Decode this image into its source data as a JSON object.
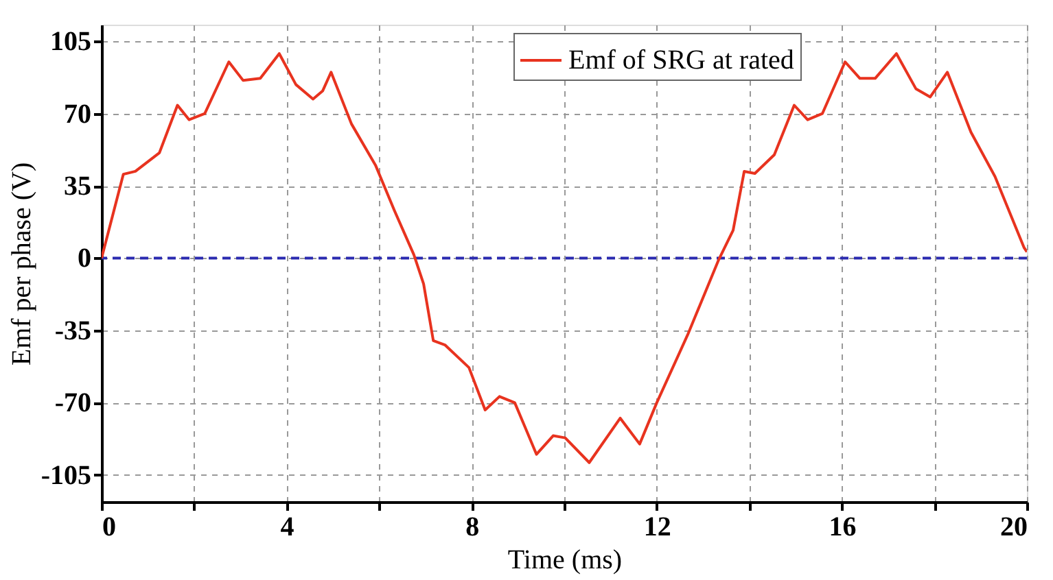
{
  "chart_data": {
    "type": "line",
    "xlabel": "Time (ms)",
    "ylabel": "Emf per phase (V)",
    "xlim": [
      0,
      20
    ],
    "ylim": [
      -118,
      113
    ],
    "xticks": [
      0,
      {
        "value": 2,
        "label": null
      },
      4,
      {
        "value": 6,
        "label": null
      },
      8,
      {
        "value": 10,
        "label": null
      },
      12,
      {
        "value": 14,
        "label": null
      },
      16,
      {
        "value": 18,
        "label": null
      },
      20
    ],
    "yticks": [
      -105,
      -70,
      -35,
      0,
      35,
      70,
      105
    ],
    "grid": true,
    "legend": "top",
    "line_style": "solid",
    "marker": "none",
    "ref_lines": [
      {
        "axis": "y",
        "value": 0,
        "color": "#2b2bb0",
        "line_style": "dashed"
      }
    ],
    "series": [
      {
        "name": "Emf of SRG at rated",
        "color": "#e8331f",
        "x": [
          0,
          0.47,
          0.73,
          1.25,
          1.64,
          1.89,
          2.23,
          2.75,
          3.06,
          3.43,
          3.84,
          4.2,
          4.57,
          4.78,
          4.96,
          5.4,
          5.92,
          6.33,
          6.75,
          6.96,
          7.17,
          7.42,
          7.94,
          8.29,
          8.6,
          8.93,
          9.4,
          9.76,
          10.02,
          10.54,
          11.21,
          11.63,
          12.0,
          12.67,
          13.34,
          13.65,
          13.89,
          14.12,
          14.54,
          14.97,
          15.26,
          15.58,
          16.07,
          16.39,
          16.72,
          17.18,
          17.6,
          17.91,
          18.28,
          18.79,
          19.31,
          19.94,
          20
        ],
        "values": [
          0,
          40.6,
          42,
          51,
          74,
          67,
          70,
          95,
          86,
          87,
          99,
          84,
          77,
          81,
          90,
          65,
          45,
          23,
          1.6,
          -12.5,
          -40,
          -42,
          -53,
          -73.5,
          -67,
          -70,
          -95,
          -86,
          -87,
          -99,
          -77.5,
          -90,
          -70,
          -37,
          -0.7,
          13.5,
          42,
          41,
          50,
          74,
          67,
          70,
          95,
          87,
          87,
          99,
          82,
          78,
          90,
          61,
          39.5,
          5,
          3
        ]
      }
    ]
  }
}
